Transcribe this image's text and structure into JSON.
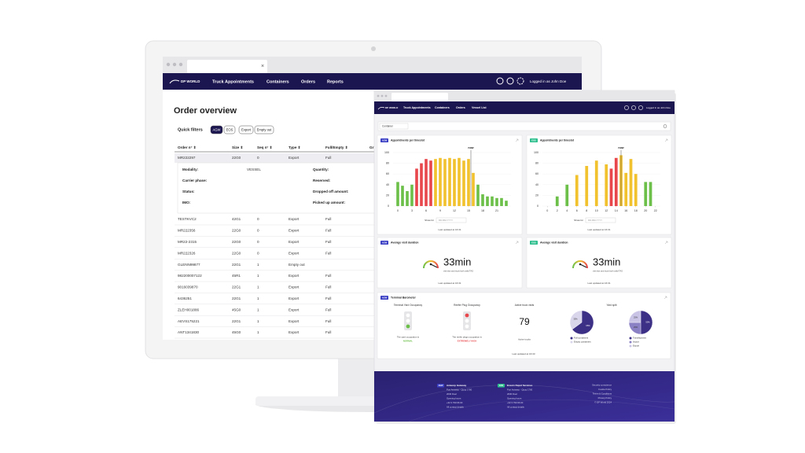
{
  "back": {
    "logo": "DP WORLD",
    "nav": [
      "Truck Appointments",
      "Containers",
      "Orders",
      "Reports"
    ],
    "user_prefix": "Logged in as",
    "user": "John Doe",
    "title": "Order overview",
    "quick_filters": "Quick filters",
    "chips": [
      "AGW",
      "EOS",
      "Export",
      "Empty out"
    ],
    "columns": [
      "Order n° ⇕",
      "Size ⇕",
      "Seq n° ⇕",
      "Type ⇕",
      "Full/Empty ⇕",
      "Gr"
    ],
    "first_row": [
      "MR222297",
      "22G0",
      "0",
      "Export",
      "Full"
    ],
    "detail_left": [
      {
        "label": "Modality:",
        "value": "VESSEL"
      },
      {
        "label": "Carrier phase:"
      },
      {
        "label": "Status:"
      },
      {
        "label": "IMO:"
      }
    ],
    "detail_right": [
      "Quantity:",
      "Reserved:",
      "Dropped off amount:",
      "Picked up amount:"
    ],
    "rows": [
      [
        "TESTKVC2",
        "42G1",
        "0",
        "Export",
        "Full"
      ],
      [
        "MR222356",
        "22G0",
        "0",
        "Export",
        "Full"
      ],
      [
        "MR22-2315",
        "22G0",
        "0",
        "Export",
        "Full"
      ],
      [
        "MR222326",
        "22G0",
        "0",
        "Export",
        "Full"
      ],
      [
        "GLENN99877",
        "22G1",
        "1",
        "Empty out"
      ],
      [
        "982200007122",
        "45R1",
        "1",
        "Export",
        "Full"
      ],
      [
        "9016039870",
        "22G1",
        "1",
        "Export",
        "Full"
      ],
      [
        "6436251",
        "22G1",
        "1",
        "Export",
        "Full"
      ],
      [
        "ZLEH001886",
        "45G0",
        "1",
        "Export",
        "Full"
      ],
      [
        "AEVS175221",
        "22G1",
        "1",
        "Export",
        "Full"
      ],
      [
        "ANT1341830",
        "45G0",
        "1",
        "Export",
        "Full"
      ]
    ]
  },
  "front": {
    "logo": "DP WORLD",
    "nav": [
      "Truck Appointments",
      "Containers",
      "Orders",
      "Vessel List"
    ],
    "user": "Logged in as John Doe",
    "search": "Container",
    "charts": [
      {
        "type": "bar",
        "badge": "AGW",
        "title": "Appointments per timeslot",
        "x": [
          0,
          1,
          2,
          3,
          4,
          5,
          6,
          7,
          8,
          9,
          10,
          11,
          12,
          13,
          14,
          15,
          16,
          17,
          18,
          19,
          20,
          21,
          22,
          23
        ],
        "values": [
          45,
          38,
          28,
          40,
          70,
          80,
          88,
          85,
          88,
          90,
          88,
          90,
          88,
          90,
          85,
          88,
          62,
          40,
          22,
          18,
          18,
          15,
          15,
          10
        ],
        "colors": [
          "#6cc04a",
          "#6cc04a",
          "#6cc04a",
          "#6cc04a",
          "#e8474c",
          "#e8474c",
          "#e8474c",
          "#e8474c",
          "#f2c12e",
          "#f2c12e",
          "#f2c12e",
          "#f2c12e",
          "#f2c12e",
          "#f2c12e",
          "#f2c12e",
          "#f2c12e",
          "#f2c12e",
          "#6cc04a",
          "#6cc04a",
          "#6cc04a",
          "#6cc04a",
          "#6cc04a",
          "#6cc04a",
          "#6cc04a"
        ],
        "xlim": [
          -1,
          24
        ],
        "xticks": [
          0,
          3,
          6,
          9,
          12,
          15,
          18,
          21
        ],
        "ylim": [
          0,
          100
        ],
        "yticks": [
          0,
          20,
          40,
          60,
          80,
          100
        ],
        "annotation": "now",
        "annotation_x": 15.5,
        "show_for": "Show for",
        "date": "DD-MM-YYYY",
        "updated": "Last updated at 16:31"
      },
      {
        "type": "bar",
        "badge": "EOS",
        "title": "Appointments per timeslot",
        "x": [
          2,
          4,
          6,
          8,
          10,
          12,
          13,
          14,
          15,
          16,
          17,
          18,
          20,
          21
        ],
        "values": [
          18,
          40,
          58,
          75,
          85,
          78,
          70,
          90,
          95,
          62,
          88,
          60,
          45,
          45
        ],
        "colors": [
          "#6cc04a",
          "#6cc04a",
          "#f2c12e",
          "#f2c12e",
          "#f2c12e",
          "#f2c12e",
          "#e8474c",
          "#e8474c",
          "#f2c12e",
          "#f2c12e",
          "#f2c12e",
          "#f2c12e",
          "#6cc04a",
          "#6cc04a"
        ],
        "xlim": [
          -1,
          23
        ],
        "xticks": [
          0,
          2,
          4,
          6,
          8,
          10,
          12,
          14,
          16,
          18,
          20,
          22
        ],
        "ylim": [
          0,
          100
        ],
        "yticks": [
          0,
          20,
          40,
          60,
          80,
          100
        ],
        "annotation": "now",
        "annotation_x": 15,
        "show_for": "Show for",
        "date": "DD-MM-YYYY",
        "updated": "Last updated at 16:31"
      }
    ],
    "gauges": [
      {
        "badge": "AGW",
        "title": "Average visit duration",
        "value": "33min",
        "caption": "visit slot and truck both valid TAS",
        "updated": "Last updated at 16:31"
      },
      {
        "badge": "EOS",
        "title": "Average visit duration",
        "value": "33min",
        "caption": "visit slot and truck both valid TAS",
        "updated": "Last updated at 16:31"
      }
    ],
    "barometer": {
      "badge": "AGW",
      "title": "Terminal Barometer",
      "yard": {
        "title": "Terminal Yard Occupancy",
        "caption": "The yard occupation is",
        "status": "NORMAL"
      },
      "reefer": {
        "title": "Reefer Plug Occupancy",
        "caption": "The reefer plugs occupation is",
        "status": "EXTREMELY HIGH"
      },
      "trucks": {
        "title": "Active truck visits",
        "value": "79",
        "caption": "Active trucks"
      },
      "split_title": "Yard split",
      "pies": [
        {
          "type": "pie",
          "names": [
            "Full containers",
            "Empty containers"
          ],
          "values": [
            65,
            35
          ],
          "value_labels": [
            "65%",
            "35%"
          ],
          "colors": [
            "#3c2f86",
            "#d9d6ec"
          ]
        },
        {
          "type": "pie",
          "names": [
            "Transhipment",
            "Import",
            "Export"
          ],
          "values": [
            50,
            25,
            25
          ],
          "value_labels": [
            "50%",
            "25%",
            "25%"
          ],
          "colors": [
            "#3c2f86",
            "#8a80c4",
            "#c9c4e6"
          ]
        }
      ],
      "updated": "Last updated at 16:33"
    },
    "footer": {
      "blocks": [
        {
          "badge": "AGW",
          "name": "Antwerp Gateway",
          "lines": [
            "Port Antwerp - Quay 1700",
            "2030 Doel",
            "Opening hours",
            "+32 3 790 96 00",
            "All contact details"
          ]
        },
        {
          "badge": "EOS",
          "name": "Essers Depot Services",
          "lines": [
            "Port Antwerp - Quay 1700",
            "2030 Doel",
            "Opening hours",
            "+32 3 790 96 00",
            "All contact details"
          ]
        }
      ],
      "links": [
        "Security conscience",
        "Cookie Policy",
        "Terms & Conditions",
        "Privacy Policy",
        "© DP World 2024"
      ]
    }
  }
}
